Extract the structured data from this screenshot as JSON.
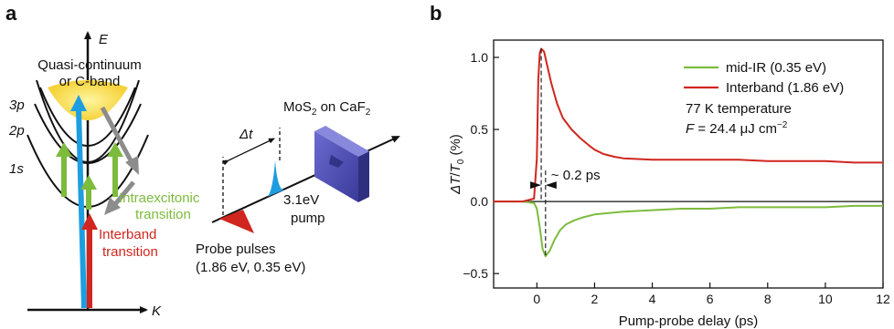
{
  "figure": {
    "panel_a": {
      "letter": "a",
      "axis_e": "E",
      "axis_k": "K",
      "continuum": [
        "Quasi-continuum",
        "or C-band"
      ],
      "levels": [
        "3p",
        "2p",
        "1s"
      ],
      "intraexcitonic": [
        "Intraexcitonic",
        "transition"
      ],
      "interband": [
        "Interband",
        "transition"
      ],
      "delay": "Δt",
      "sample": "MoS2 on CaF2",
      "pump": [
        "3.1eV",
        "pump"
      ],
      "probe": [
        "Probe pulses",
        "(1.86 eV, 0.35 eV)"
      ],
      "colors": {
        "green": "#7dbb3d",
        "red": "#d0261f",
        "blue": "#1e9ee0",
        "gray": "#8c8c8c",
        "sample": "#5555bb"
      }
    },
    "panel_b": {
      "letter": "b",
      "annotation_delay": "~ 0.2 ps",
      "info": [
        "77 K temperature",
        "F = 24.4 μJ cm−2"
      ]
    }
  },
  "chart_data": {
    "type": "line",
    "xlabel": "Pump-probe delay (ps)",
    "ylabel": "ΔT/T0 (%)",
    "xlim": [
      -1.5,
      12
    ],
    "ylim": [
      -0.6,
      1.12
    ],
    "xticks": [
      0,
      2,
      4,
      6,
      8,
      10,
      12
    ],
    "yticks": [
      -0.5,
      0.0,
      0.5,
      1.0
    ],
    "ytick_labels": [
      "−0.5",
      "0.0",
      "0.5",
      "1.0"
    ],
    "legend_position": "top-right",
    "series": [
      {
        "name": "mid-IR (0.35 eV)",
        "color": "#7dbb3d",
        "x": [
          -1.5,
          -0.5,
          -0.1,
          0.0,
          0.1,
          0.2,
          0.3,
          0.45,
          0.6,
          0.8,
          1.0,
          1.3,
          1.6,
          2.0,
          2.5,
          3.0,
          4.0,
          5.0,
          6.0,
          7.0,
          8.0,
          9.0,
          10.0,
          11.0,
          12.0
        ],
        "y": [
          0.0,
          0.0,
          -0.01,
          -0.05,
          -0.18,
          -0.33,
          -0.38,
          -0.34,
          -0.27,
          -0.2,
          -0.16,
          -0.13,
          -0.11,
          -0.09,
          -0.08,
          -0.07,
          -0.06,
          -0.05,
          -0.05,
          -0.04,
          -0.04,
          -0.04,
          -0.04,
          -0.03,
          -0.03
        ]
      },
      {
        "name": "Interband (1.86 eV)",
        "color": "#d0261f",
        "x": [
          -1.5,
          -0.5,
          -0.1,
          0.0,
          0.05,
          0.1,
          0.15,
          0.25,
          0.35,
          0.5,
          0.7,
          0.9,
          1.2,
          1.5,
          1.8,
          2.0,
          2.3,
          2.7,
          3.0,
          4.0,
          5.0,
          6.0,
          7.0,
          8.0,
          9.0,
          10.0,
          11.0,
          12.0
        ],
        "y": [
          0.0,
          0.0,
          0.02,
          0.3,
          0.85,
          1.03,
          1.06,
          1.04,
          0.95,
          0.82,
          0.68,
          0.58,
          0.5,
          0.44,
          0.39,
          0.36,
          0.33,
          0.31,
          0.3,
          0.29,
          0.29,
          0.29,
          0.29,
          0.28,
          0.28,
          0.28,
          0.27,
          0.27
        ]
      }
    ]
  }
}
